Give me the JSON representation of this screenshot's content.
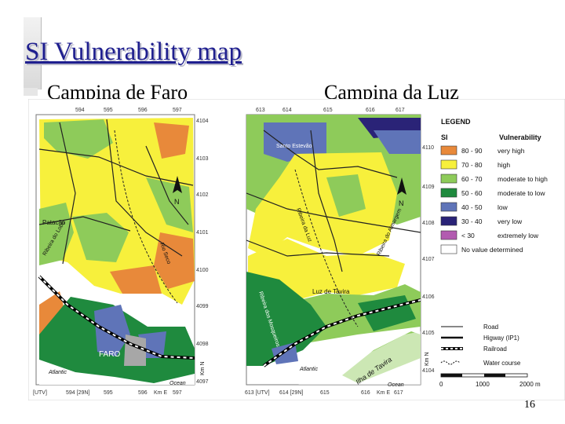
{
  "title": "SI Vulnerability map",
  "subtitles": {
    "left": "Campina de Faro",
    "right": "Campina da Luz"
  },
  "page_number": "16",
  "faro_map": {
    "top_ticks": [
      "594",
      "595",
      "596",
      "597"
    ],
    "bottom_ticks": [
      "[UTV]",
      "594 [29N]",
      "595",
      "596",
      "Km E",
      "597"
    ],
    "left_ticks": [
      "4104",
      "4103",
      "4102",
      "4101",
      "4100",
      "4099",
      "4098",
      "4097"
    ],
    "right_ticks": [
      "4104",
      "4103",
      "4102",
      "4101",
      "4100",
      "4099",
      "4098",
      "4097"
    ],
    "labels": {
      "palacao": "Patacão",
      "ribeira": "Ribeira do Lobo",
      "rio": "Rio Seco",
      "faro": "FARO",
      "atlantic": "Atlantic",
      "ocean": "Ocean",
      "kmn": "Km N",
      "north": "N"
    }
  },
  "luz_map": {
    "top_ticks": [
      "613",
      "614",
      "615",
      "616",
      "617"
    ],
    "bottom_ticks": [
      "613 [UTV]",
      "614 [29N]",
      "615",
      "616",
      "Km E",
      "617"
    ],
    "right_ticks": [
      "4110",
      "4109",
      "4108",
      "4107",
      "4106",
      "4105",
      "4104"
    ],
    "labels": {
      "santo": "Santo Estevão",
      "ribeira_luz": "Ribeira da Luz",
      "ribeira_almargem": "Ribeira do Almargem",
      "luz": "Luz de Tavira",
      "mosqueiro": "Ribeira dos Mosqueiros",
      "ilha": "Ilha de Tavira",
      "atlantic": "Atlantic",
      "ocean": "Ocean",
      "kmn": "Km N",
      "north": "N"
    }
  },
  "legend": {
    "title": "LEGEND",
    "col_si": "SI",
    "col_vuln": "Vulnerability",
    "items": [
      {
        "range": "80 - 90",
        "label": "very high",
        "color": "#e8893a"
      },
      {
        "range": "70 - 80",
        "label": "high",
        "color": "#f7f03c"
      },
      {
        "range": "60 - 70",
        "label": "moderate to high",
        "color": "#8ecb5a"
      },
      {
        "range": "50 - 60",
        "label": "moderate to low",
        "color": "#1f8a3e"
      },
      {
        "range": "40 - 50",
        "label": "low",
        "color": "#5f74b8"
      },
      {
        "range": "30 - 40",
        "label": "very low",
        "color": "#2a2377"
      },
      {
        "range": "< 30",
        "label": "extremely low",
        "color": "#b25bb0"
      },
      {
        "range": "",
        "label": "No value determined",
        "color": "#ffffff"
      }
    ],
    "lines": {
      "road": "Road",
      "highway": "Higway (IP1)",
      "railroad": "Railroad",
      "water": "Water course"
    },
    "scale": {
      "zero": "0",
      "mid": "1000",
      "end": "2000 m"
    }
  }
}
